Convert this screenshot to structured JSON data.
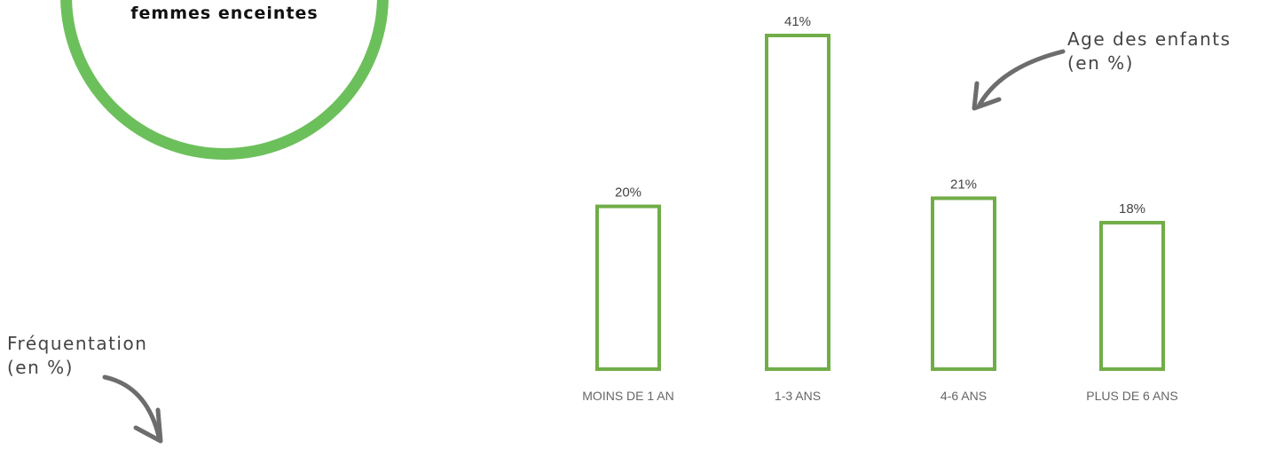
{
  "highlight": {
    "label": "femmes enceintes",
    "ring_color": "#6cc05b"
  },
  "captions": {
    "age": {
      "line1": "Age des enfants",
      "line2": "(en %)"
    },
    "frequentation": {
      "line1": "Fréquentation",
      "line2": "(en %)"
    }
  },
  "arrow_color": "#6d6d6d",
  "chart_data": {
    "type": "bar",
    "categories": [
      "MOINS DE 1 AN",
      "1-3 ANS",
      "4-6 ANS",
      "PLUS DE 6 ANS"
    ],
    "values": [
      20,
      41,
      21,
      18
    ],
    "value_labels": [
      "20%",
      "41%",
      "21%",
      "18%"
    ],
    "unit": "%",
    "bar_style": "outlined",
    "bar_color": "#70ad47",
    "ylim": [
      0,
      41
    ],
    "grid": false,
    "axes_visible": false
  }
}
